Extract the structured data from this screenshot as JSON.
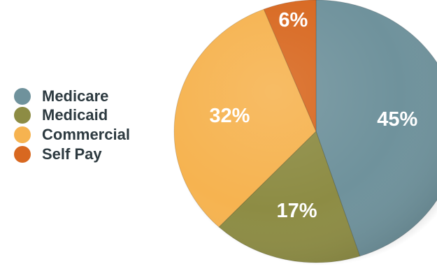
{
  "chart_data": {
    "type": "pie",
    "title": "",
    "slices": [
      {
        "label": "Medicare",
        "value": 45,
        "display": "45%",
        "color": "#6f929c"
      },
      {
        "label": "Medicaid",
        "value": 17,
        "display": "17%",
        "color": "#8d8c44"
      },
      {
        "label": "Commercial",
        "value": 32,
        "display": "32%",
        "color": "#f6b350"
      },
      {
        "label": "Self Pay",
        "value": 6,
        "display": "6%",
        "color": "#d86820"
      }
    ],
    "legend_position": "left",
    "label_color": "#ffffff",
    "legend_text_color": "#2d3a40"
  }
}
